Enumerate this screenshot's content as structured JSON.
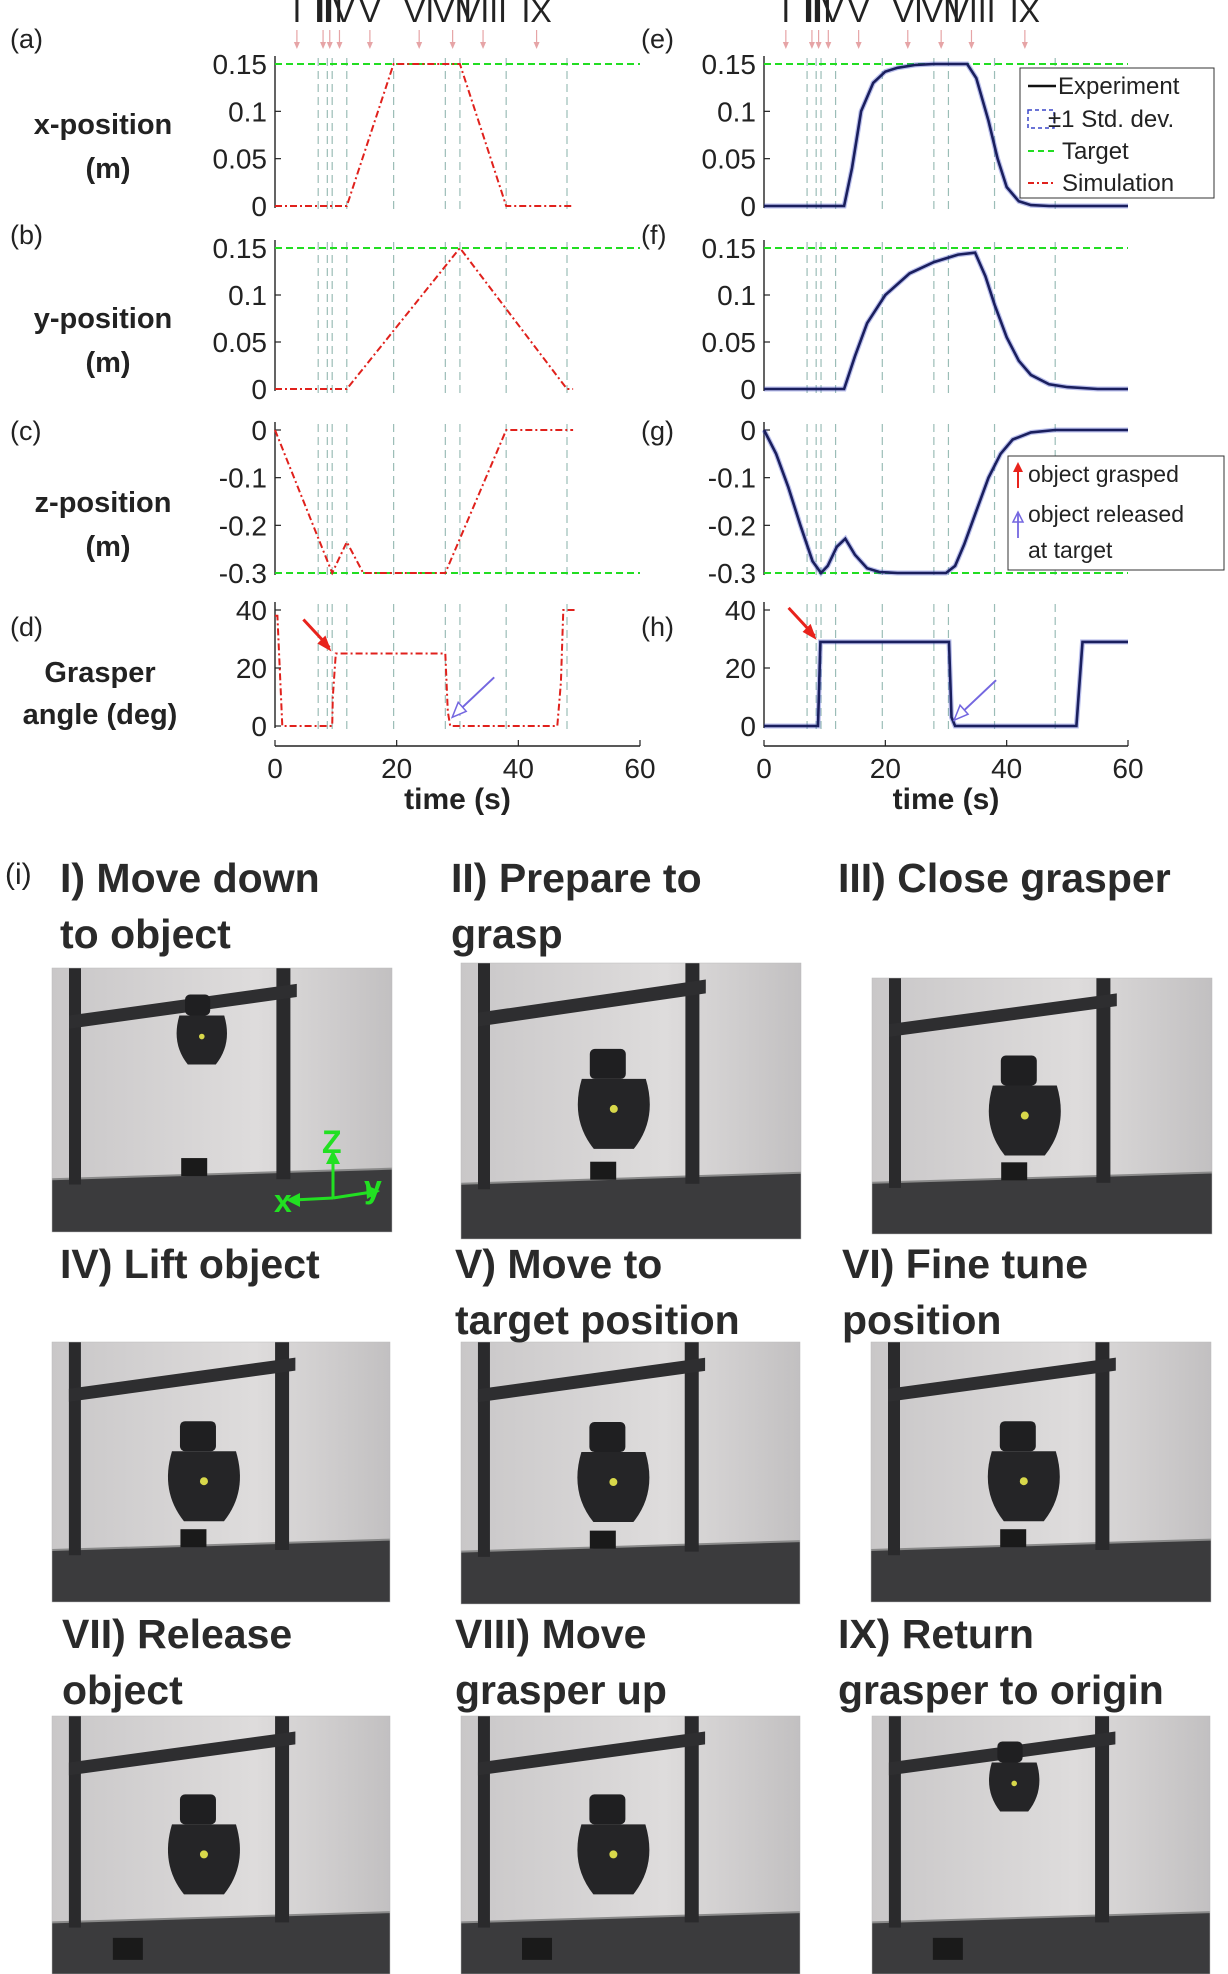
{
  "phase_labels": [
    "I",
    "II",
    "III",
    "IV",
    "V",
    "VI",
    "VII",
    "VIII",
    "IX"
  ],
  "phase_boundaries": [
    7.1,
    8.6,
    9.4,
    11.8,
    19.5,
    28.0,
    30.4,
    38.0,
    48.0
  ],
  "panel_letters": {
    "a": "(a)",
    "b": "(b)",
    "c": "(c)",
    "d": "(d)",
    "e": "(e)",
    "f": "(f)",
    "g": "(g)",
    "h": "(h)",
    "i": "(i)"
  },
  "ylabels": {
    "x": [
      "x-position",
      "(m)"
    ],
    "y": [
      "y-position",
      "(m)"
    ],
    "z": [
      "z-position",
      "(m)"
    ],
    "angle": [
      "Grasper",
      "angle (deg)"
    ]
  },
  "xlabel": "time (s)",
  "legend_top": [
    "Experiment",
    "±1 Std. dev.",
    "Target",
    "Simulation"
  ],
  "legend_events": [
    "object grasped",
    "object released",
    "at target"
  ],
  "colors": {
    "simulation": "#e0211c",
    "experiment": "#1a1f5e",
    "target": "#22dd22",
    "phase_line": "#9bbdb7",
    "grasp_arrow": "#e8231c",
    "release_arrow": "#7467e0",
    "std_dev": "#3a47c9"
  },
  "chart_data": [
    {
      "id": "a",
      "type": "line",
      "xlim": [
        0,
        60
      ],
      "ylim": [
        0,
        0.15
      ],
      "yticks": [
        "0",
        "0.05",
        "0.1",
        "0.15"
      ],
      "target": 0.15,
      "series": [
        {
          "name": "Simulation",
          "x": [
            0,
            11.8,
            19.5,
            28,
            30.4,
            38,
            49
          ],
          "y": [
            0,
            0,
            0.15,
            0.15,
            0.15,
            0,
            0
          ]
        }
      ]
    },
    {
      "id": "b",
      "type": "line",
      "xlim": [
        0,
        60
      ],
      "ylim": [
        0,
        0.15
      ],
      "yticks": [
        "0",
        "0.05",
        "0.1",
        "0.15"
      ],
      "target": 0.15,
      "series": [
        {
          "name": "Simulation",
          "x": [
            0,
            11.8,
            30.4,
            48,
            49
          ],
          "y": [
            0,
            0,
            0.15,
            0,
            0
          ]
        }
      ]
    },
    {
      "id": "c",
      "type": "line",
      "xlim": [
        0,
        60
      ],
      "ylim": [
        -0.3,
        0
      ],
      "yticks": [
        "-0.3",
        "-0.2",
        "-0.1",
        "0"
      ],
      "target": -0.3,
      "series": [
        {
          "name": "Simulation",
          "x": [
            0,
            9.4,
            11.8,
            14.5,
            28,
            38,
            49
          ],
          "y": [
            0,
            -0.3,
            -0.235,
            -0.3,
            -0.3,
            0,
            0
          ]
        }
      ]
    },
    {
      "id": "d",
      "type": "line",
      "xlim": [
        0,
        60
      ],
      "ylim": [
        0,
        40
      ],
      "yticks": [
        "0",
        "20",
        "40"
      ],
      "xticks": [
        "0",
        "20",
        "40",
        "60"
      ],
      "series": [
        {
          "name": "Simulation",
          "x": [
            0,
            0.4,
            1.2,
            9.4,
            9.5,
            10.0,
            28.0,
            28.4,
            28.8,
            46.4,
            47.0,
            47.4,
            49.5
          ],
          "y": [
            38,
            38,
            0,
            0,
            10,
            25,
            25,
            5,
            0,
            0,
            15,
            40,
            40
          ]
        }
      ]
    },
    {
      "id": "e",
      "type": "line",
      "xlim": [
        0,
        60
      ],
      "ylim": [
        0,
        0.15
      ],
      "yticks": [
        "0",
        "0.05",
        "0.1",
        "0.15"
      ],
      "target": 0.15,
      "series": [
        {
          "name": "Experiment",
          "x": [
            0,
            13.2,
            14.5,
            16,
            18,
            20,
            22,
            25,
            28,
            30,
            32,
            33.5,
            35,
            37,
            38.5,
            40,
            42,
            44,
            47,
            50,
            55,
            60
          ],
          "y": [
            0,
            0,
            0.04,
            0.1,
            0.13,
            0.142,
            0.146,
            0.149,
            0.15,
            0.15,
            0.15,
            0.15,
            0.135,
            0.09,
            0.05,
            0.02,
            0.005,
            0.001,
            0,
            0,
            0,
            0
          ]
        }
      ]
    },
    {
      "id": "f",
      "type": "line",
      "xlim": [
        0,
        60
      ],
      "ylim": [
        0,
        0.15
      ],
      "yticks": [
        "0",
        "0.05",
        "0.1",
        "0.15"
      ],
      "target": 0.15,
      "series": [
        {
          "name": "Experiment",
          "x": [
            0,
            13.2,
            15,
            17,
            20,
            24,
            28,
            32,
            34.8,
            36.5,
            38,
            40,
            42,
            44,
            47,
            50,
            55,
            60
          ],
          "y": [
            0,
            0,
            0.035,
            0.07,
            0.1,
            0.123,
            0.135,
            0.143,
            0.145,
            0.12,
            0.09,
            0.055,
            0.03,
            0.015,
            0.005,
            0.002,
            0,
            0
          ]
        }
      ]
    },
    {
      "id": "g",
      "type": "line",
      "xlim": [
        0,
        60
      ],
      "ylim": [
        -0.3,
        0
      ],
      "yticks": [
        "-0.3",
        "-0.2",
        "-0.1",
        "0"
      ],
      "target": -0.3,
      "series": [
        {
          "name": "Experiment",
          "x": [
            0,
            2,
            4,
            6,
            8,
            9.4,
            10.5,
            12,
            13.4,
            15,
            17,
            19,
            22,
            26,
            30,
            31.5,
            33,
            35,
            37,
            39,
            41,
            44,
            48,
            52,
            60
          ],
          "y": [
            0,
            -0.05,
            -0.12,
            -0.2,
            -0.275,
            -0.3,
            -0.285,
            -0.245,
            -0.228,
            -0.262,
            -0.29,
            -0.298,
            -0.3,
            -0.3,
            -0.3,
            -0.285,
            -0.24,
            -0.17,
            -0.1,
            -0.05,
            -0.02,
            -0.005,
            0,
            0,
            0
          ]
        }
      ]
    },
    {
      "id": "h",
      "type": "line",
      "xlim": [
        0,
        60
      ],
      "ylim": [
        0,
        40
      ],
      "yticks": [
        "0",
        "20",
        "40"
      ],
      "xticks": [
        "0",
        "20",
        "40",
        "60"
      ],
      "series": [
        {
          "name": "Experiment",
          "x": [
            0,
            8.9,
            9.3,
            30.5,
            30.9,
            31.5,
            51.5,
            52.5,
            60
          ],
          "y": [
            0,
            0,
            29,
            29,
            3,
            0,
            0,
            29,
            29
          ]
        }
      ]
    }
  ],
  "steps": [
    {
      "numeral": "I)",
      "lines": [
        "Move down",
        "to object"
      ]
    },
    {
      "numeral": "II)",
      "lines": [
        "Prepare to",
        "grasp"
      ]
    },
    {
      "numeral": "III)",
      "lines": [
        "Close grasper"
      ]
    },
    {
      "numeral": "IV)",
      "lines": [
        "Lift object"
      ]
    },
    {
      "numeral": "V)",
      "lines": [
        "Move to",
        "target position"
      ]
    },
    {
      "numeral": "VI)",
      "lines": [
        "Fine tune",
        "position"
      ]
    },
    {
      "numeral": "VII)",
      "lines": [
        "Release",
        "object"
      ]
    },
    {
      "numeral": "VIII)",
      "lines": [
        "Move",
        "grasper up"
      ]
    },
    {
      "numeral": "IX)",
      "lines": [
        "Return",
        "grasper  to origin"
      ]
    }
  ],
  "axes_overlay": {
    "z": "Z",
    "x": "x",
    "y": "y"
  }
}
